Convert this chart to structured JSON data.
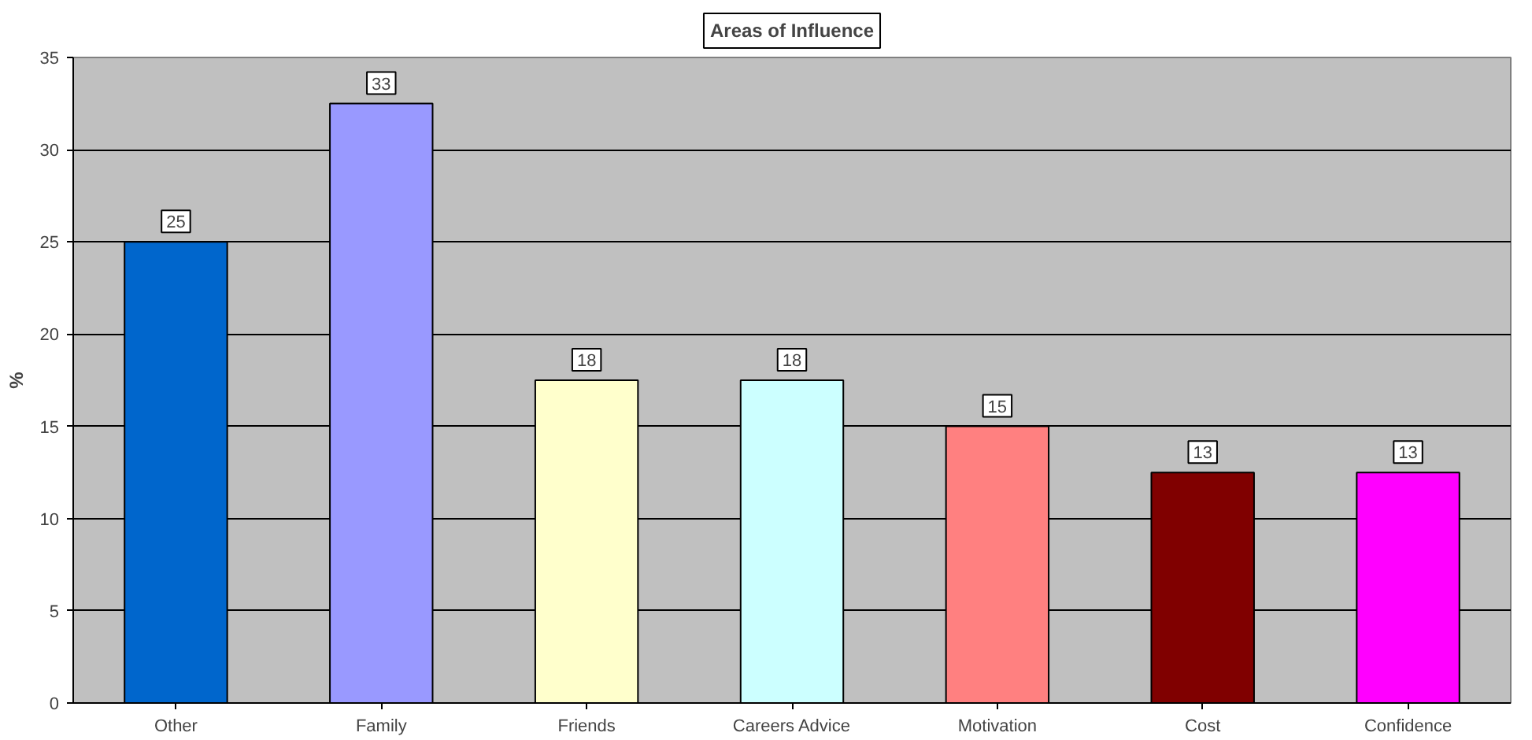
{
  "chart_data": {
    "type": "bar",
    "title": "Areas of Influence",
    "ylabel": "%",
    "categories": [
      "Other",
      "Family",
      "Friends",
      "Careers Advice",
      "Motivation",
      "Cost",
      "Confidence"
    ],
    "values": [
      25,
      32.5,
      17.5,
      17.5,
      15,
      12.5,
      12.5
    ],
    "value_labels": [
      "25",
      "33",
      "18",
      "18",
      "15",
      "13",
      "13"
    ],
    "colors": [
      "#0066cc",
      "#9999ff",
      "#ffffcc",
      "#ccffff",
      "#ff8080",
      "#800000",
      "#ff00ff"
    ],
    "ylim": [
      0,
      35
    ],
    "yticks": [
      0,
      5,
      10,
      15,
      20,
      25,
      30,
      35
    ],
    "grid": "y"
  }
}
